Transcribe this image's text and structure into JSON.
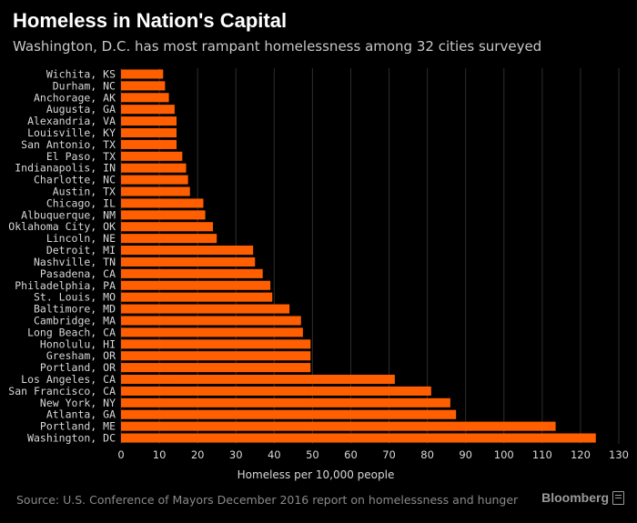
{
  "header": {
    "title": "Homeless in Nation's Capital",
    "subtitle": "Washington, D.C. has most rampant homelessness among 32 cities surveyed"
  },
  "footer": {
    "source": "Source: U.S. Conference of Mayors December 2016 report on homelessness and hunger",
    "brand": "Bloomberg"
  },
  "colors": {
    "bar": "#ff5f00",
    "grid": "#2e2e2e",
    "background": "#000000"
  },
  "chart_data": {
    "type": "bar",
    "orientation": "horizontal",
    "title": "Homeless in Nation's Capital",
    "xlabel": "Homeless per 10,000 people",
    "ylabel": "",
    "xlim": [
      0,
      130
    ],
    "x_ticks": [
      0,
      10,
      20,
      30,
      40,
      50,
      60,
      70,
      80,
      90,
      100,
      110,
      120,
      130
    ],
    "grid": true,
    "categories": [
      "Wichita, KS",
      "Durham, NC",
      "Anchorage, AK",
      "Augusta, GA",
      "Alexandria, VA",
      "Louisville, KY",
      "San Antonio, TX",
      "El Paso, TX",
      "Indianapolis, IN",
      "Charlotte, NC",
      "Austin, TX",
      "Chicago, IL",
      "Albuquerque, NM",
      "Oklahoma City, OK",
      "Lincoln, NE",
      "Detroit, MI",
      "Nashville, TN",
      "Pasadena, CA",
      "Philadelphia, PA",
      "St. Louis, MO",
      "Baltimore, MD",
      "Cambridge, MA",
      "Long Beach, CA",
      "Honolulu, HI",
      "Gresham, OR",
      "Portland, OR",
      "Los Angeles, CA",
      "San Francisco, CA",
      "New York, NY",
      "Atlanta, GA",
      "Portland, ME",
      "Washington, DC"
    ],
    "values": [
      11,
      11.5,
      12.5,
      14,
      14.5,
      14.5,
      14.5,
      16,
      17,
      17.5,
      18,
      21.5,
      22,
      24,
      25,
      34.5,
      35,
      37,
      39,
      39.5,
      44,
      47,
      47.5,
      49.5,
      49.5,
      49.5,
      71.5,
      81,
      86,
      87.5,
      113.5,
      124
    ]
  }
}
